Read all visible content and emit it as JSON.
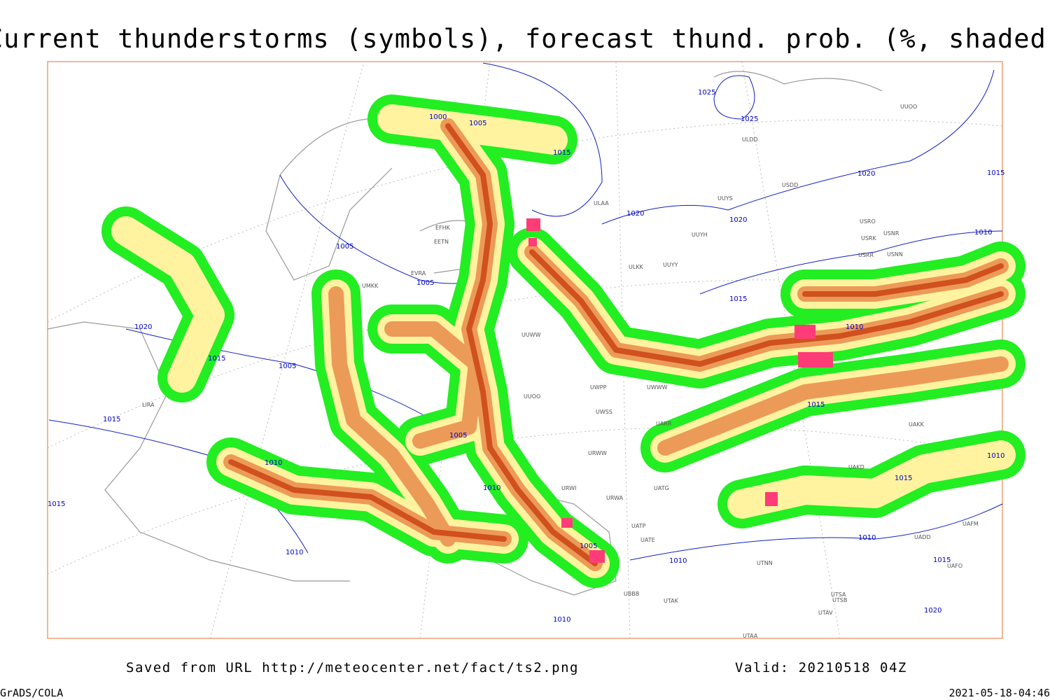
{
  "title": "Current thunderstorms (symbols), forecast thund. prob. (%, shaded)",
  "footer": {
    "saved": "Saved from URL http://meteocenter.net/fact/ts2.png",
    "valid": "Valid: 20210518 04Z",
    "credit": "GrADS/COLA",
    "timestamp": "2021-05-18-04:46"
  },
  "map": {
    "isobar_labels": [
      "1000",
      "1005",
      "1015",
      "1025",
      "1025",
      "1020",
      "1015",
      "1020",
      "1020",
      "1010",
      "1005",
      "1005",
      "1015",
      "1010",
      "1020",
      "1015",
      "1005",
      "1015",
      "1015",
      "1005",
      "1010",
      "1010",
      "1015",
      "1010",
      "1010",
      "1005",
      "1015",
      "1010",
      "1010",
      "1020",
      "1010",
      "1015"
    ],
    "station_labels": [
      "ULDD",
      "USDD",
      "UUYS",
      "ULAA",
      "UUOO",
      "UUYH",
      "USRO",
      "USRK",
      "USNR",
      "USRR",
      "USNN",
      "ULKK",
      "UUYY",
      "EFHK",
      "EETN",
      "EVRA",
      "UMKK",
      "UUWW",
      "UUOO",
      "UWPP",
      "UWWW",
      "UWSS",
      "UARR",
      "URWW",
      "URWI",
      "URWA",
      "UATG",
      "UATP",
      "UATE",
      "UAKD",
      "UAKK",
      "UTAK",
      "UBBB",
      "UTAA",
      "UTSA",
      "UTSB",
      "UTAV",
      "UTNN",
      "UAFM",
      "UAFO",
      "UADD",
      "LIRA"
    ]
  }
}
